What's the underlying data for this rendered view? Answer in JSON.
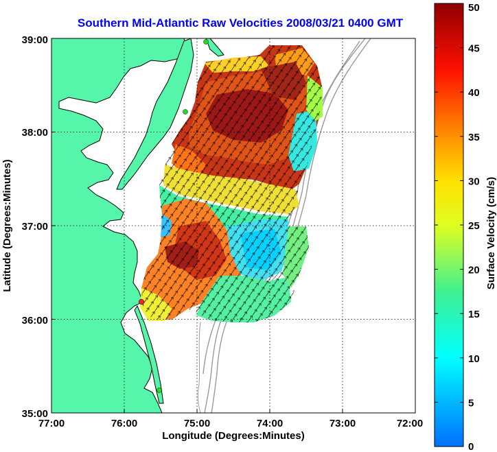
{
  "title": "Southern Mid-Atlantic Raw Velocities 2008/03/21 0400 GMT",
  "x_axis": {
    "label": "Longitude (Degrees:Minutes)",
    "ticks": [
      "77:00",
      "76:00",
      "75:00",
      "74:00",
      "73:00",
      "72:00"
    ]
  },
  "y_axis": {
    "label": "Latitude (Degrees:Minutes)",
    "ticks": [
      "39:00",
      "38:00",
      "37:00",
      "36:00",
      "35:00"
    ]
  },
  "colorbar": {
    "label": "Surface Velocity (cm/s)",
    "ticks": [
      "0",
      "5",
      "10",
      "15",
      "20",
      "25",
      "30",
      "35",
      "40",
      "45",
      "50"
    ],
    "min": 0,
    "max": 50
  },
  "extent": {
    "lon_min": -77,
    "lon_max": -72,
    "lat_min": 35,
    "lat_max": 39
  },
  "colors": {
    "land": "#55f5aa",
    "title": "#0000ff",
    "bathymetry": "#999999",
    "station_red": "#ff2020",
    "station_green": "#22dd22"
  }
}
